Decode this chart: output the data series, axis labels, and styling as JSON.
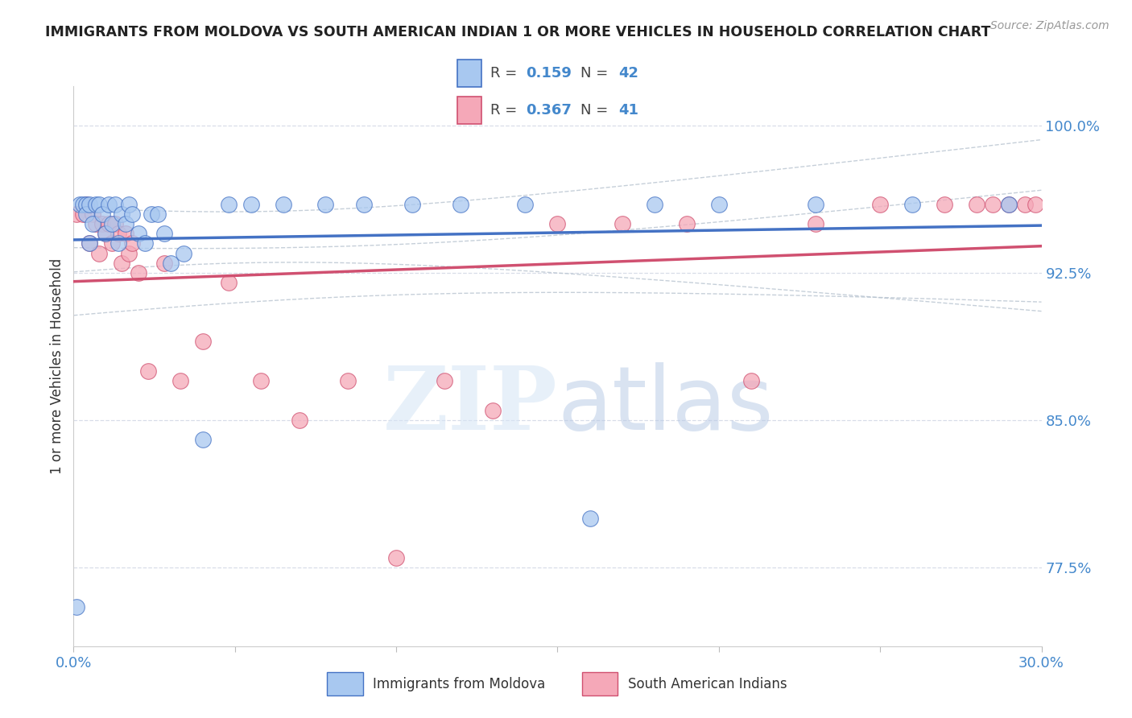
{
  "title": "IMMIGRANTS FROM MOLDOVA VS SOUTH AMERICAN INDIAN 1 OR MORE VEHICLES IN HOUSEHOLD CORRELATION CHART",
  "source": "Source: ZipAtlas.com",
  "ylabel": "1 or more Vehicles in Household",
  "xlim": [
    0.0,
    0.3
  ],
  "ylim": [
    0.735,
    1.02
  ],
  "R_moldova": 0.159,
  "N_moldova": 42,
  "R_sai": 0.367,
  "N_sai": 41,
  "moldova_color": "#A8C8F0",
  "sai_color": "#F5A8B8",
  "trendline_moldova_color": "#4472C4",
  "trendline_sai_color": "#D05070",
  "grid_color": "#D8DDE8",
  "ytick_vals": [
    0.775,
    0.85,
    0.925,
    1.0
  ],
  "ytick_labels": [
    "77.5%",
    "85.0%",
    "92.5%",
    "100.0%"
  ],
  "xtick_vals": [
    0.0,
    0.05,
    0.1,
    0.15,
    0.2,
    0.25,
    0.3
  ],
  "xtick_labels": [
    "0.0%",
    "",
    "",
    "",
    "",
    "",
    "30.0%"
  ],
  "moldova_x": [
    0.001,
    0.002,
    0.003,
    0.004,
    0.004,
    0.005,
    0.005,
    0.006,
    0.007,
    0.008,
    0.009,
    0.01,
    0.011,
    0.012,
    0.013,
    0.014,
    0.015,
    0.016,
    0.017,
    0.018,
    0.02,
    0.022,
    0.024,
    0.026,
    0.028,
    0.03,
    0.034,
    0.04,
    0.048,
    0.055,
    0.065,
    0.078,
    0.09,
    0.105,
    0.12,
    0.14,
    0.16,
    0.18,
    0.2,
    0.23,
    0.26,
    0.29
  ],
  "moldova_y": [
    0.755,
    0.96,
    0.96,
    0.96,
    0.955,
    0.94,
    0.96,
    0.95,
    0.96,
    0.96,
    0.955,
    0.945,
    0.96,
    0.95,
    0.96,
    0.94,
    0.955,
    0.95,
    0.96,
    0.955,
    0.945,
    0.94,
    0.955,
    0.955,
    0.945,
    0.93,
    0.935,
    0.84,
    0.96,
    0.96,
    0.96,
    0.96,
    0.96,
    0.96,
    0.96,
    0.96,
    0.8,
    0.96,
    0.96,
    0.96,
    0.96,
    0.96
  ],
  "sai_x": [
    0.001,
    0.003,
    0.004,
    0.005,
    0.006,
    0.007,
    0.008,
    0.009,
    0.01,
    0.011,
    0.012,
    0.013,
    0.014,
    0.015,
    0.016,
    0.017,
    0.018,
    0.02,
    0.023,
    0.028,
    0.033,
    0.04,
    0.048,
    0.058,
    0.07,
    0.085,
    0.1,
    0.115,
    0.13,
    0.15,
    0.17,
    0.19,
    0.21,
    0.23,
    0.25,
    0.27,
    0.28,
    0.285,
    0.29,
    0.295,
    0.298
  ],
  "sai_y": [
    0.955,
    0.955,
    0.96,
    0.94,
    0.955,
    0.95,
    0.935,
    0.95,
    0.945,
    0.95,
    0.94,
    0.95,
    0.945,
    0.93,
    0.945,
    0.935,
    0.94,
    0.925,
    0.875,
    0.93,
    0.87,
    0.89,
    0.92,
    0.87,
    0.85,
    0.87,
    0.78,
    0.87,
    0.855,
    0.95,
    0.95,
    0.95,
    0.87,
    0.95,
    0.96,
    0.96,
    0.96,
    0.96,
    0.96,
    0.96,
    0.96
  ]
}
